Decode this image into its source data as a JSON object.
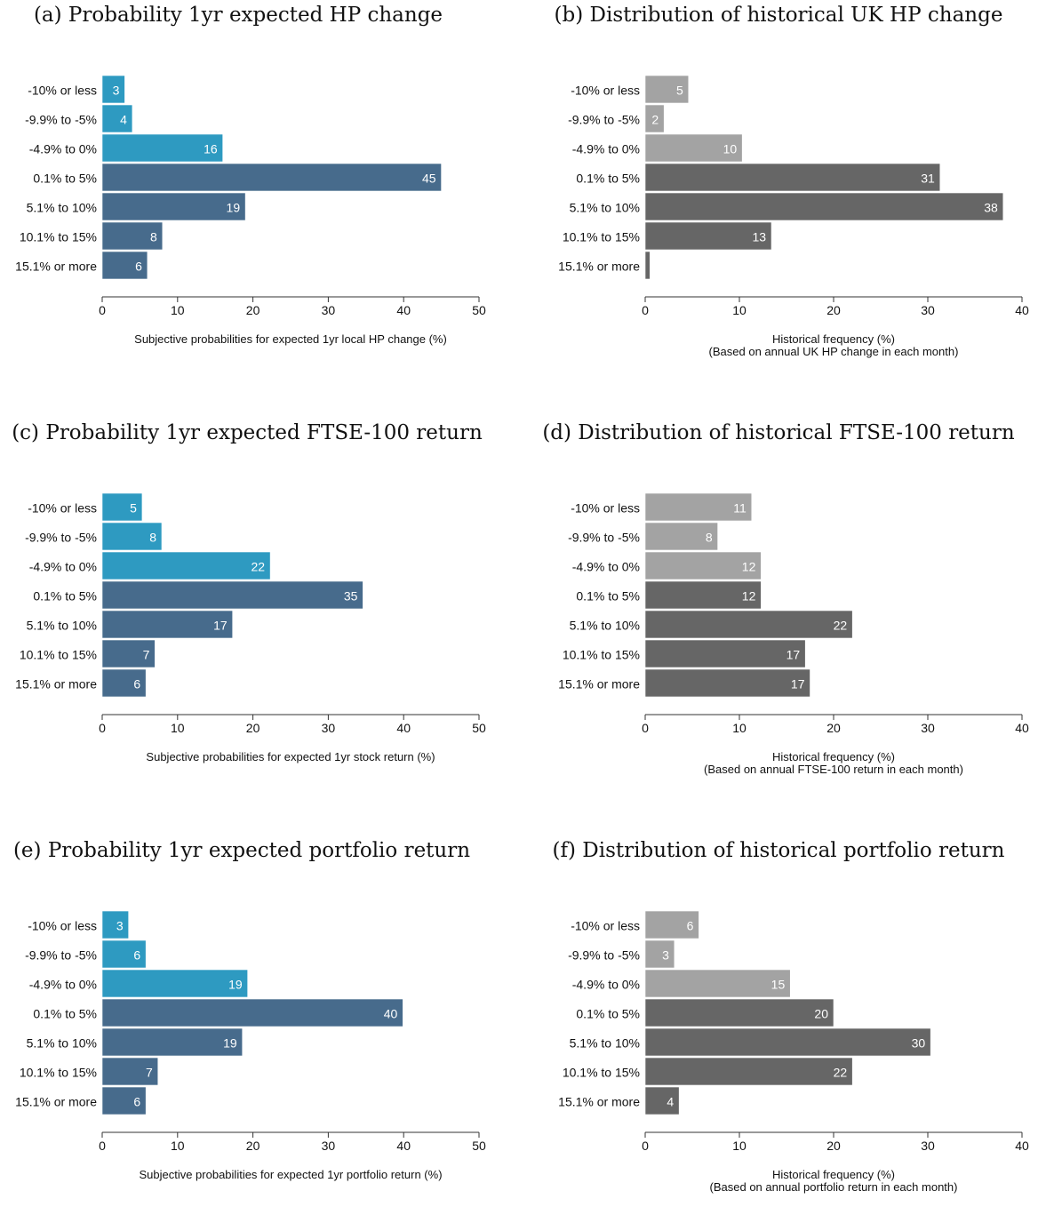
{
  "chart_data": [
    {
      "type": "bar",
      "orientation": "horizontal",
      "title": "(a) Probability 1yr expected HP change",
      "categories": [
        "-10% or less",
        "-9.9% to -5%",
        "-4.9% to 0%",
        "0.1% to 5%",
        "5.1% to 10%",
        "10.1% to 15%",
        "15.1% or more"
      ],
      "values": [
        3,
        4,
        16,
        45,
        19,
        8,
        6
      ],
      "data_labels": [
        "3",
        "4",
        "16",
        "45",
        "19",
        "8",
        "6"
      ],
      "xlim": [
        0,
        50
      ],
      "xticks": [
        "0",
        "10",
        "20",
        "30",
        "40",
        "50"
      ],
      "xlabel": [
        "Subjective probabilities for expected 1yr local HP change (%)"
      ],
      "colors": [
        "#2e9ac1",
        "#2e9ac1",
        "#2e9ac1",
        "#476b8c",
        "#476b8c",
        "#476b8c",
        "#476b8c"
      ]
    },
    {
      "type": "bar",
      "orientation": "horizontal",
      "title": "(b) Distribution of historical UK HP change",
      "categories": [
        "-10% or less",
        "-9.9% to -5%",
        "-4.9% to 0%",
        "0.1% to 5%",
        "5.1% to 10%",
        "10.1% to 15%",
        "15.1% or more"
      ],
      "values": [
        4.6,
        2.0,
        10.3,
        31.3,
        38.0,
        13.4,
        0.5
      ],
      "data_labels": [
        "5",
        "2",
        "10",
        "31",
        "38",
        "13",
        ""
      ],
      "xlim": [
        0,
        40
      ],
      "xticks": [
        "0",
        "10",
        "20",
        "30",
        "40"
      ],
      "xlabel": [
        "Historical frequency (%)",
        "(Based on annual UK HP change in each month)"
      ],
      "colors": [
        "#a3a3a3",
        "#a3a3a3",
        "#a3a3a3",
        "#666666",
        "#666666",
        "#666666",
        "#666666"
      ]
    },
    {
      "type": "bar",
      "orientation": "horizontal",
      "title": "(c) Probability 1yr expected FTSE-100 return",
      "categories": [
        "-10% or less",
        "-9.9% to -5%",
        "-4.9% to 0%",
        "0.1% to 5%",
        "5.1% to 10%",
        "10.1% to 15%",
        "15.1% or more"
      ],
      "values": [
        5.3,
        7.9,
        22.3,
        34.6,
        17.3,
        7.0,
        5.8
      ],
      "data_labels": [
        "5",
        "8",
        "22",
        "35",
        "17",
        "7",
        "6"
      ],
      "xlim": [
        0,
        50
      ],
      "xticks": [
        "0",
        "10",
        "20",
        "30",
        "40",
        "50"
      ],
      "xlabel": [
        "Subjective probabilities for expected 1yr stock return (%)"
      ],
      "colors": [
        "#2e9ac1",
        "#2e9ac1",
        "#2e9ac1",
        "#476b8c",
        "#476b8c",
        "#476b8c",
        "#476b8c"
      ]
    },
    {
      "type": "bar",
      "orientation": "horizontal",
      "title": "(d) Distribution of historical FTSE-100 return",
      "categories": [
        "-10% or less",
        "-9.9% to -5%",
        "-4.9% to 0%",
        "0.1% to 5%",
        "5.1% to 10%",
        "10.1% to 15%",
        "15.1% or more"
      ],
      "values": [
        11.3,
        7.7,
        12.3,
        12.3,
        22.0,
        17.0,
        17.5
      ],
      "data_labels": [
        "11",
        "8",
        "12",
        "12",
        "22",
        "17",
        "17"
      ],
      "xlim": [
        0,
        40
      ],
      "xticks": [
        "0",
        "10",
        "20",
        "30",
        "40"
      ],
      "xlabel": [
        "Historical frequency (%)",
        "(Based on annual FTSE-100 return in each month)"
      ],
      "colors": [
        "#a3a3a3",
        "#a3a3a3",
        "#a3a3a3",
        "#666666",
        "#666666",
        "#666666",
        "#666666"
      ]
    },
    {
      "type": "bar",
      "orientation": "horizontal",
      "title": "(e) Probability 1yr expected portfolio return",
      "categories": [
        "-10% or less",
        "-9.9% to -5%",
        "-4.9% to 0%",
        "0.1% to 5%",
        "5.1% to 10%",
        "10.1% to 15%",
        "15.1% or more"
      ],
      "values": [
        3.5,
        5.8,
        19.3,
        39.9,
        18.6,
        7.4,
        5.8
      ],
      "data_labels": [
        "3",
        "6",
        "19",
        "40",
        "19",
        "7",
        "6"
      ],
      "xlim": [
        0,
        50
      ],
      "xticks": [
        "0",
        "10",
        "20",
        "30",
        "40",
        "50"
      ],
      "xlabel": [
        "Subjective probabilities for expected 1yr portfolio return (%)"
      ],
      "colors": [
        "#2e9ac1",
        "#2e9ac1",
        "#2e9ac1",
        "#476b8c",
        "#476b8c",
        "#476b8c",
        "#476b8c"
      ]
    },
    {
      "type": "bar",
      "orientation": "horizontal",
      "title": "(f) Distribution of historical portfolio return",
      "categories": [
        "-10% or less",
        "-9.9% to -5%",
        "-4.9% to 0%",
        "0.1% to 5%",
        "5.1% to 10%",
        "10.1% to 15%",
        "15.1% or more"
      ],
      "values": [
        5.7,
        3.1,
        15.4,
        20.0,
        30.3,
        22.0,
        3.6
      ],
      "data_labels": [
        "6",
        "3",
        "15",
        "20",
        "30",
        "22",
        "4"
      ],
      "xlim": [
        0,
        40
      ],
      "xticks": [
        "0",
        "10",
        "20",
        "30",
        "40"
      ],
      "xlabel": [
        "Historical frequency (%)",
        "(Based on annual portfolio return in each month)"
      ],
      "colors": [
        "#a3a3a3",
        "#a3a3a3",
        "#a3a3a3",
        "#666666",
        "#666666",
        "#666666",
        "#666666"
      ]
    }
  ]
}
